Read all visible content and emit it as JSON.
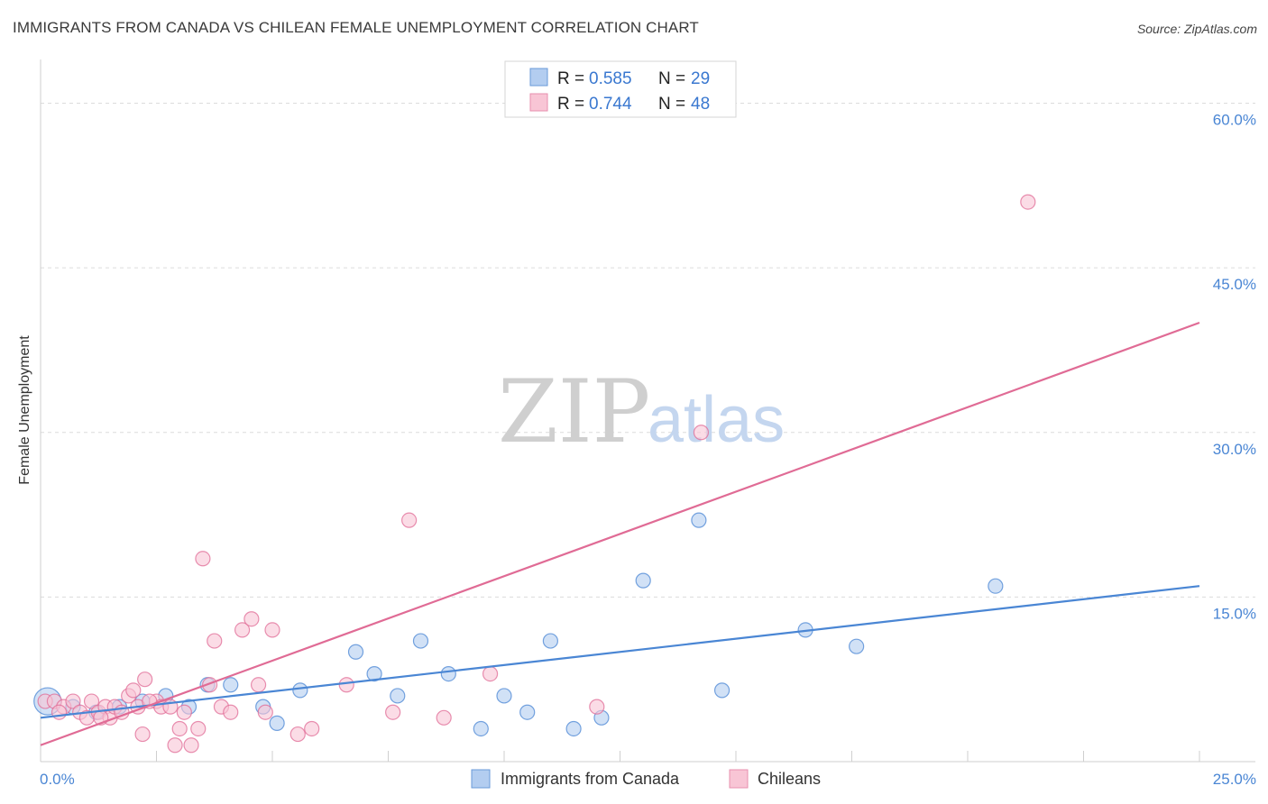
{
  "chart_data": {
    "type": "scatter",
    "title": "IMMIGRANTS FROM CANADA VS CHILEAN FEMALE UNEMPLOYMENT CORRELATION CHART",
    "source": "Source: ZipAtlas.com",
    "xlabel": "",
    "ylabel": "Female Unemployment",
    "xlim": [
      0,
      25
    ],
    "ylim": [
      0,
      63
    ],
    "x_tick_labels": [
      {
        "value": 0,
        "label": "0.0%"
      },
      {
        "value": 25,
        "label": "25.0%"
      }
    ],
    "y_tick_labels": [
      {
        "value": 15,
        "label": "15.0%"
      },
      {
        "value": 30,
        "label": "30.0%"
      },
      {
        "value": 45,
        "label": "45.0%"
      },
      {
        "value": 60,
        "label": "60.0%"
      }
    ],
    "watermark": {
      "zip": "ZIP",
      "atlas": "atlas"
    },
    "stats_legend": [
      {
        "r_label": "R =",
        "r_value": "0.585",
        "n_label": "N =",
        "n_value": "29"
      },
      {
        "r_label": "R =",
        "r_value": "0.744",
        "n_label": "N =",
        "n_value": "48"
      }
    ],
    "series": [
      {
        "name": "Immigrants from Canada",
        "color": "#4a86d4",
        "fill": "#b3cdf0",
        "trend": {
          "x0": 0,
          "y0": 4.0,
          "x1": 25,
          "y1": 16.0
        },
        "points": [
          {
            "x": 0.15,
            "y": 5.5,
            "big": true
          },
          {
            "x": 0.7,
            "y": 5.0
          },
          {
            "x": 1.2,
            "y": 4.5
          },
          {
            "x": 1.7,
            "y": 5.0
          },
          {
            "x": 2.2,
            "y": 5.5
          },
          {
            "x": 2.7,
            "y": 6.0
          },
          {
            "x": 3.2,
            "y": 5.0
          },
          {
            "x": 3.6,
            "y": 7.0
          },
          {
            "x": 4.1,
            "y": 7.0
          },
          {
            "x": 4.8,
            "y": 5.0
          },
          {
            "x": 5.1,
            "y": 3.5
          },
          {
            "x": 5.6,
            "y": 6.5
          },
          {
            "x": 6.8,
            "y": 10.0
          },
          {
            "x": 7.2,
            "y": 8.0
          },
          {
            "x": 7.7,
            "y": 6.0
          },
          {
            "x": 8.2,
            "y": 11.0
          },
          {
            "x": 8.8,
            "y": 8.0
          },
          {
            "x": 9.5,
            "y": 3.0
          },
          {
            "x": 10.0,
            "y": 6.0
          },
          {
            "x": 10.5,
            "y": 4.5
          },
          {
            "x": 11.0,
            "y": 11.0
          },
          {
            "x": 11.5,
            "y": 3.0
          },
          {
            "x": 12.1,
            "y": 4.0
          },
          {
            "x": 13.0,
            "y": 16.5
          },
          {
            "x": 14.2,
            "y": 22.0
          },
          {
            "x": 14.7,
            "y": 6.5
          },
          {
            "x": 16.5,
            "y": 12.0
          },
          {
            "x": 17.6,
            "y": 10.5
          },
          {
            "x": 20.6,
            "y": 16.0
          }
        ]
      },
      {
        "name": "Chileans",
        "color": "#e06b95",
        "fill": "#f8c5d5",
        "trend": {
          "x0": 0,
          "y0": 1.5,
          "x1": 25,
          "y1": 40.0
        },
        "points": [
          {
            "x": 0.1,
            "y": 5.5
          },
          {
            "x": 0.3,
            "y": 5.5
          },
          {
            "x": 0.5,
            "y": 5.0
          },
          {
            "x": 0.7,
            "y": 5.5
          },
          {
            "x": 0.85,
            "y": 4.5
          },
          {
            "x": 1.0,
            "y": 4.0
          },
          {
            "x": 1.1,
            "y": 5.5
          },
          {
            "x": 1.25,
            "y": 4.5
          },
          {
            "x": 1.4,
            "y": 5.0
          },
          {
            "x": 1.5,
            "y": 4.0
          },
          {
            "x": 1.6,
            "y": 5.0
          },
          {
            "x": 1.75,
            "y": 4.5
          },
          {
            "x": 1.9,
            "y": 6.0
          },
          {
            "x": 2.0,
            "y": 6.5
          },
          {
            "x": 2.1,
            "y": 5.0
          },
          {
            "x": 2.2,
            "y": 2.5
          },
          {
            "x": 2.25,
            "y": 7.5
          },
          {
            "x": 2.5,
            "y": 5.5
          },
          {
            "x": 2.6,
            "y": 5.0
          },
          {
            "x": 2.8,
            "y": 5.0
          },
          {
            "x": 2.9,
            "y": 1.5
          },
          {
            "x": 3.0,
            "y": 3.0
          },
          {
            "x": 3.1,
            "y": 4.5
          },
          {
            "x": 3.25,
            "y": 1.5
          },
          {
            "x": 3.4,
            "y": 3.0
          },
          {
            "x": 3.5,
            "y": 18.5
          },
          {
            "x": 3.65,
            "y": 7.0
          },
          {
            "x": 3.75,
            "y": 11.0
          },
          {
            "x": 3.9,
            "y": 5.0
          },
          {
            "x": 4.1,
            "y": 4.5
          },
          {
            "x": 4.35,
            "y": 12.0
          },
          {
            "x": 4.55,
            "y": 13.0
          },
          {
            "x": 4.7,
            "y": 7.0
          },
          {
            "x": 4.85,
            "y": 4.5
          },
          {
            "x": 5.0,
            "y": 12.0
          },
          {
            "x": 5.55,
            "y": 2.5
          },
          {
            "x": 5.85,
            "y": 3.0
          },
          {
            "x": 6.6,
            "y": 7.0
          },
          {
            "x": 7.6,
            "y": 4.5
          },
          {
            "x": 7.95,
            "y": 22.0
          },
          {
            "x": 8.7,
            "y": 4.0
          },
          {
            "x": 9.7,
            "y": 8.0
          },
          {
            "x": 12.0,
            "y": 5.0
          },
          {
            "x": 14.25,
            "y": 30.0
          },
          {
            "x": 21.3,
            "y": 51.0
          },
          {
            "x": 0.4,
            "y": 4.5
          },
          {
            "x": 1.3,
            "y": 4.0
          },
          {
            "x": 2.35,
            "y": 5.5
          }
        ]
      }
    ]
  }
}
